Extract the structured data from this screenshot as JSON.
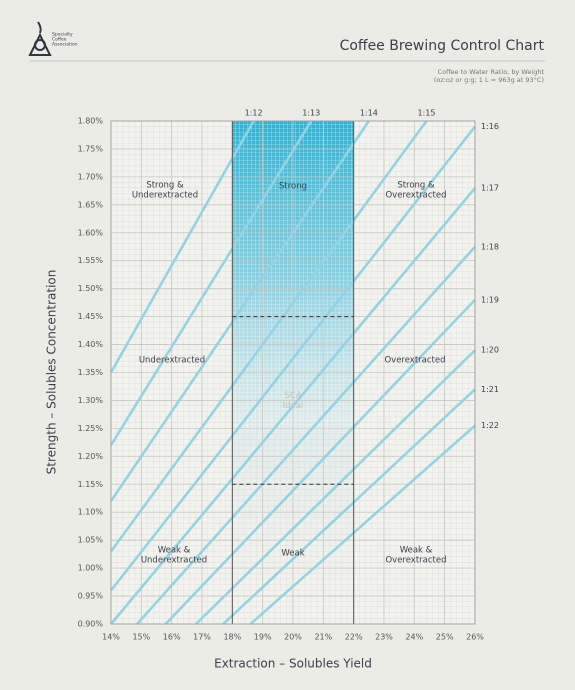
{
  "logo": {
    "lines": [
      "Specialty",
      "Coffee",
      "Association"
    ]
  },
  "chart_data": {
    "type": "line",
    "title": "Coffee Brewing Control Chart",
    "subtitle": [
      "Coffee to Water Ratio, by Weight",
      "(oz:oz or g:g; 1 L = 963g at 93°C)"
    ],
    "x_label": "Extraction – Solubles Yield",
    "y_label": "Strength – Solubles Concentration",
    "xlim": [
      14,
      26
    ],
    "ylim": [
      0.9,
      1.8
    ],
    "xticks": [
      {
        "value": 14,
        "label": "14%"
      },
      {
        "value": 15,
        "label": "15%"
      },
      {
        "value": 16,
        "label": "16%"
      },
      {
        "value": 17,
        "label": "17%"
      },
      {
        "value": 18,
        "label": "18%"
      },
      {
        "value": 19,
        "label": "19%"
      },
      {
        "value": 20,
        "label": "20%"
      },
      {
        "value": 21,
        "label": "21%"
      },
      {
        "value": 22,
        "label": "22%"
      },
      {
        "value": 23,
        "label": "23%"
      },
      {
        "value": 24,
        "label": "24%"
      },
      {
        "value": 25,
        "label": "25%"
      },
      {
        "value": 26,
        "label": "26%"
      }
    ],
    "yticks": [
      {
        "value": 0.9,
        "label": "0.90%"
      },
      {
        "value": 0.95,
        "label": "0.95%"
      },
      {
        "value": 1.0,
        "label": "1.00%"
      },
      {
        "value": 1.05,
        "label": "1.05%"
      },
      {
        "value": 1.1,
        "label": "1.10%"
      },
      {
        "value": 1.15,
        "label": "1.15%"
      },
      {
        "value": 1.2,
        "label": "1.20%"
      },
      {
        "value": 1.25,
        "label": "1.25%"
      },
      {
        "value": 1.3,
        "label": "1.30%"
      },
      {
        "value": 1.35,
        "label": "1.35%"
      },
      {
        "value": 1.4,
        "label": "1.40%"
      },
      {
        "value": 1.45,
        "label": "1.45%"
      },
      {
        "value": 1.5,
        "label": "1.50%"
      },
      {
        "value": 1.55,
        "label": "1.55%"
      },
      {
        "value": 1.6,
        "label": "1.60%"
      },
      {
        "value": 1.65,
        "label": "1.65%"
      },
      {
        "value": 1.7,
        "label": "1.70%"
      },
      {
        "value": 1.75,
        "label": "1.75%"
      },
      {
        "value": 1.8,
        "label": "1.80%"
      }
    ],
    "grid": true,
    "line_color": "#93d3e3",
    "series": [
      {
        "name": "1:12",
        "x": [
          14,
          18.7
        ],
        "values": [
          1.35,
          1.8
        ]
      },
      {
        "name": "1:13",
        "x": [
          14,
          20.6
        ],
        "values": [
          1.22,
          1.8
        ]
      },
      {
        "name": "1:14",
        "x": [
          14,
          22.5
        ],
        "values": [
          1.12,
          1.8
        ]
      },
      {
        "name": "1:15",
        "x": [
          14,
          24.4
        ],
        "values": [
          1.03,
          1.8
        ]
      },
      {
        "name": "1:16",
        "x": [
          14,
          26
        ],
        "values": [
          0.96,
          1.79
        ]
      },
      {
        "name": "1:17",
        "x": [
          14,
          26
        ],
        "values": [
          0.9,
          1.68
        ]
      },
      {
        "name": "1:18",
        "x": [
          14.86,
          26
        ],
        "values": [
          0.9,
          1.575
        ]
      },
      {
        "name": "1:19",
        "x": [
          15.8,
          26
        ],
        "values": [
          0.9,
          1.48
        ]
      },
      {
        "name": "1:20",
        "x": [
          16.8,
          26
        ],
        "values": [
          0.9,
          1.39
        ]
      },
      {
        "name": "1:21",
        "x": [
          17.7,
          26
        ],
        "values": [
          0.9,
          1.32
        ]
      },
      {
        "name": "1:22",
        "x": [
          18.6,
          26
        ],
        "values": [
          0.9,
          1.255
        ]
      }
    ],
    "bounds_x": [
      18,
      22
    ],
    "ideal": {
      "y": [
        1.15,
        1.45
      ],
      "label": [
        "SCA",
        "Ideal"
      ]
    },
    "regions": [
      [
        "Strong &",
        "Underextracted"
      ],
      [
        "Strong"
      ],
      [
        "Strong &",
        "Overextracted"
      ],
      [
        "Underextracted"
      ],
      [
        "Overextracted"
      ],
      [
        "Weak &",
        "Underextracted"
      ],
      [
        "Weak"
      ],
      [
        "Weak &",
        "Overextracted"
      ]
    ]
  }
}
